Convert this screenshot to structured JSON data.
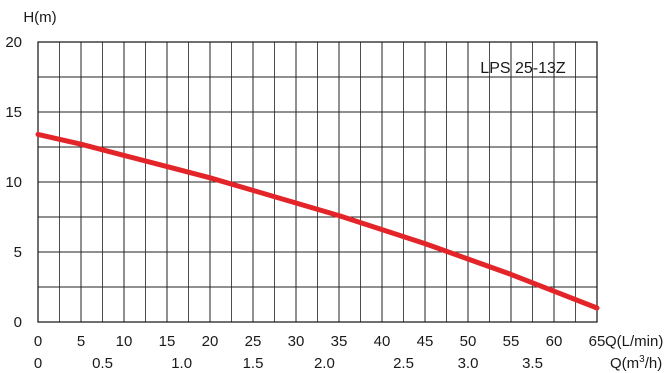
{
  "chart_data": {
    "type": "line",
    "ylabel": "H(m)",
    "xlabel": "Q(L/min)",
    "x2label": "Q(m³/h)",
    "series_label": "LPS 25-13Z",
    "xlim": [
      0,
      65
    ],
    "ylim": [
      0,
      20
    ],
    "x_ticks": [
      "0",
      "5",
      "10",
      "15",
      "20",
      "25",
      "30",
      "35",
      "40",
      "45",
      "50",
      "55",
      "60",
      "65"
    ],
    "y_ticks": [
      "0",
      "5",
      "10",
      "15",
      "20"
    ],
    "x2_ticks": [
      {
        "label": "0",
        "x_lmin": 0
      },
      {
        "label": "0.5",
        "x_lmin": 7.5
      },
      {
        "label": "1.0",
        "x_lmin": 16.7
      },
      {
        "label": "1.5",
        "x_lmin": 25
      },
      {
        "label": "2.0",
        "x_lmin": 33.3
      },
      {
        "label": "2.5",
        "x_lmin": 42.5
      },
      {
        "label": "3.0",
        "x_lmin": 50
      },
      {
        "label": "3.5",
        "x_lmin": 57.5
      }
    ],
    "grid": true,
    "series": [
      {
        "color": "#e32428",
        "x": [
          0,
          5,
          10,
          15,
          20,
          25,
          30,
          35,
          40,
          45,
          50,
          55,
          60,
          65
        ],
        "y": [
          13.4,
          12.7,
          11.9,
          11.1,
          10.3,
          9.4,
          8.5,
          7.6,
          6.6,
          5.6,
          4.5,
          3.4,
          2.2,
          1.0
        ]
      }
    ]
  }
}
